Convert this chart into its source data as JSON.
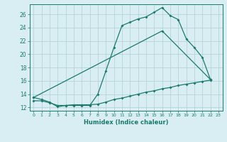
{
  "line1_x": [
    0,
    1,
    2,
    3,
    4,
    5,
    6,
    7,
    8,
    9,
    10,
    11,
    12,
    13,
    14,
    15,
    16,
    17,
    18,
    19,
    20,
    21,
    22
  ],
  "line1_y": [
    13.5,
    13.2,
    12.8,
    12.1,
    12.3,
    12.3,
    12.3,
    12.3,
    14.0,
    17.5,
    21.0,
    24.3,
    24.8,
    25.3,
    25.6,
    26.3,
    27.0,
    25.8,
    25.2,
    22.3,
    21.0,
    19.5,
    16.2
  ],
  "line2_x": [
    0,
    16,
    22
  ],
  "line2_y": [
    13.5,
    23.5,
    16.2
  ],
  "line3_x": [
    0,
    1,
    2,
    3,
    4,
    5,
    6,
    7,
    8,
    9,
    10,
    11,
    12,
    13,
    14,
    15,
    16,
    17,
    18,
    19,
    20,
    21,
    22
  ],
  "line3_y": [
    13.0,
    13.0,
    12.7,
    12.3,
    12.3,
    12.4,
    12.4,
    12.4,
    12.5,
    12.8,
    13.2,
    13.4,
    13.7,
    14.0,
    14.3,
    14.5,
    14.8,
    15.0,
    15.3,
    15.5,
    15.7,
    15.9,
    16.1
  ],
  "color": "#1a7a6e",
  "bg_color": "#d9eef2",
  "grid_color": "#b0cfd4",
  "xlabel": "Humidex (Indice chaleur)",
  "ylim": [
    11.5,
    27.5
  ],
  "xlim": [
    -0.5,
    23.5
  ],
  "yticks": [
    12,
    14,
    16,
    18,
    20,
    22,
    24,
    26
  ],
  "xticks": [
    0,
    1,
    2,
    3,
    4,
    5,
    6,
    7,
    8,
    9,
    10,
    11,
    12,
    13,
    14,
    15,
    16,
    17,
    18,
    19,
    20,
    21,
    22,
    23
  ]
}
